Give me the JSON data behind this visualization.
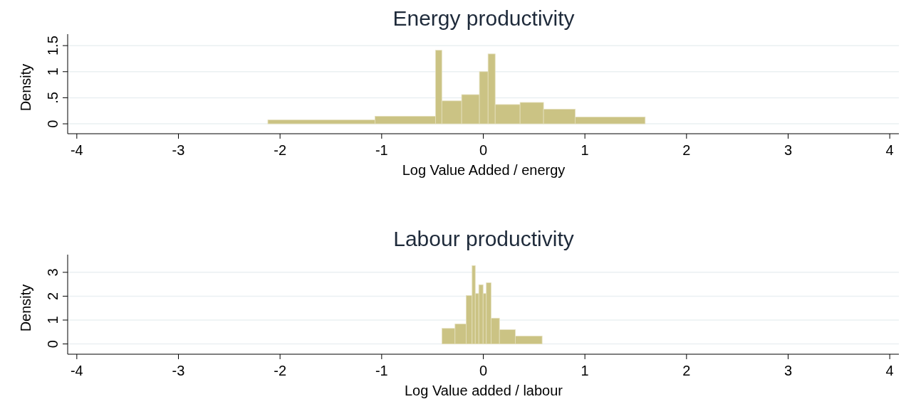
{
  "chart_data": [
    {
      "type": "histogram",
      "title": "Energy productivity",
      "xlabel": "Log Value Added / energy",
      "ylabel": "Density",
      "color": "#cbc384",
      "bins": [
        -2.12,
        -1.066,
        -0.469,
        -0.408,
        -0.213,
        -0.038,
        0.047,
        0.117,
        0.362,
        0.593,
        0.905,
        1.593
      ],
      "values": [
        0.074,
        0.146,
        1.41,
        0.44,
        0.56,
        1.0,
        1.34,
        0.37,
        0.41,
        0.28,
        0.13
      ],
      "xlim": [
        -4.09,
        4.09
      ],
      "xticks": [
        -4,
        -3,
        -2,
        -1,
        0,
        1,
        2,
        3,
        4
      ],
      "ylim": [
        -0.19,
        1.72
      ],
      "yticks": [
        0,
        {
          "value": 0.5,
          "label": ".5"
        },
        1,
        1.5
      ],
      "grid": "y"
    },
    {
      "type": "histogram",
      "title": "Labour productivity",
      "xlabel": "Log Value added / labour",
      "ylabel": "Density",
      "color": "#cbc384",
      "bins": [
        -0.406,
        -0.278,
        -0.168,
        -0.11,
        -0.079,
        -0.044,
        -0.002,
        0.03,
        0.077,
        0.159,
        0.315,
        0.579
      ],
      "values": [
        0.65,
        0.84,
        2.03,
        3.28,
        2.11,
        2.48,
        2.11,
        2.56,
        1.08,
        0.6,
        0.33
      ],
      "xlim": [
        -4.09,
        4.09
      ],
      "xticks": [
        -4,
        -3,
        -2,
        -1,
        0,
        1,
        2,
        3,
        4
      ],
      "ylim": [
        -0.43,
        3.74
      ],
      "yticks": [
        0,
        1,
        2,
        3
      ],
      "grid": "y"
    }
  ]
}
